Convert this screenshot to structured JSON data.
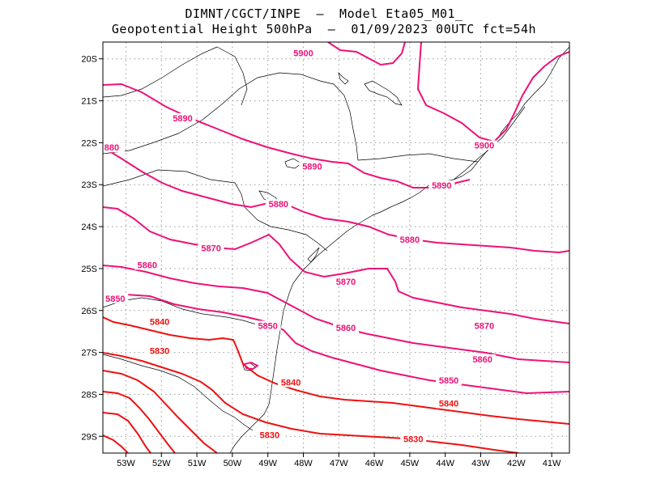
{
  "header": {
    "line1": "DIMNT/CGCT/INPE  –  Model Eta05_M01_",
    "line2": "Geopotential Height 500hPa  –  01/09/2023 00UTC fct=54h"
  },
  "axes": {
    "lat_labels": [
      "20S",
      "21S",
      "22S",
      "23S",
      "24S",
      "25S",
      "26S",
      "27S",
      "28S",
      "29S"
    ],
    "lon_labels": [
      "53W",
      "52W",
      "51W",
      "50W",
      "49W",
      "48W",
      "47W",
      "46W",
      "45W",
      "44W",
      "43W",
      "42W",
      "41W"
    ],
    "lat_values": [
      -20,
      -21,
      -22,
      -23,
      -24,
      -25,
      -26,
      -27,
      -28,
      -29
    ],
    "lon_values": [
      -53,
      -52,
      -51,
      -50,
      -49,
      -48,
      -47,
      -46,
      -45,
      -44,
      -43,
      -42,
      -41
    ],
    "lon_range": [
      -53.65,
      -40.5
    ],
    "lat_range": [
      -29.4,
      -19.6
    ]
  },
  "colors": {
    "high_contour": "#ee1177",
    "low_contour": "#ee1111",
    "coastline": "#000000",
    "grid": "#999999"
  },
  "contours": [
    {
      "value": 5900,
      "label": "5900"
    },
    {
      "value": 5890,
      "label": "5890"
    },
    {
      "value": 5880,
      "label": "5880"
    },
    {
      "value": 5870,
      "label": "5870"
    },
    {
      "value": 5860,
      "label": "5860"
    },
    {
      "value": 5850,
      "label": "5850"
    },
    {
      "value": 5840,
      "label": "5840"
    },
    {
      "value": 5830,
      "label": "5830"
    }
  ],
  "contour_labels": [
    {
      "text": "5900",
      "lon": -48.0,
      "lat": -19.9
    },
    {
      "text": "5900",
      "lon": -42.9,
      "lat": -22.1
    },
    {
      "text": "5890",
      "lon": -51.4,
      "lat": -21.45
    },
    {
      "text": "5890",
      "lon": -47.75,
      "lat": -22.6
    },
    {
      "text": "5890",
      "lon": -44.1,
      "lat": -23.05
    },
    {
      "text": "880",
      "lon": -53.4,
      "lat": -22.15
    },
    {
      "text": "5880",
      "lon": -48.7,
      "lat": -23.5
    },
    {
      "text": "5880",
      "lon": -45.0,
      "lat": -24.35
    },
    {
      "text": "5870",
      "lon": -50.6,
      "lat": -24.55
    },
    {
      "text": "5870",
      "lon": -46.8,
      "lat": -25.35
    },
    {
      "text": "5870",
      "lon": -42.9,
      "lat": -26.4
    },
    {
      "text": "5860",
      "lon": -52.4,
      "lat": -24.95
    },
    {
      "text": "5860",
      "lon": -46.8,
      "lat": -26.45
    },
    {
      "text": "5860",
      "lon": -42.95,
      "lat": -27.2
    },
    {
      "text": "5850",
      "lon": -53.3,
      "lat": -25.75
    },
    {
      "text": "5850",
      "lon": -49.0,
      "lat": -26.4
    },
    {
      "text": "5850",
      "lon": -43.9,
      "lat": -27.7
    },
    {
      "text": "5840",
      "lon": -52.05,
      "lat": -26.3
    },
    {
      "text": "5840",
      "lon": -48.35,
      "lat": -27.75
    },
    {
      "text": "5840",
      "lon": -43.9,
      "lat": -28.25
    },
    {
      "text": "5830",
      "lon": -52.05,
      "lat": -27.0
    },
    {
      "text": "5830",
      "lon": -48.95,
      "lat": -29.0
    },
    {
      "text": "5830",
      "lon": -44.9,
      "lat": -29.1
    }
  ]
}
